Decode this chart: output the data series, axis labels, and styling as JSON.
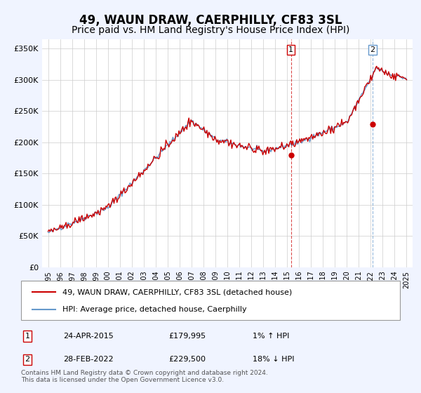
{
  "title": "49, WAUN DRAW, CAERPHILLY, CF83 3SL",
  "subtitle": "Price paid vs. HM Land Registry's House Price Index (HPI)",
  "title_fontsize": 12,
  "subtitle_fontsize": 10,
  "ylabel_ticks": [
    "£0",
    "£50K",
    "£100K",
    "£150K",
    "£200K",
    "£250K",
    "£300K",
    "£350K"
  ],
  "ytick_vals": [
    0,
    50000,
    100000,
    150000,
    200000,
    250000,
    300000,
    350000
  ],
  "ylim": [
    0,
    365000
  ],
  "xlim_start": 1994.5,
  "xlim_end": 2025.5,
  "hpi_color": "#6699cc",
  "property_color": "#cc0000",
  "marker1_date": 2015.32,
  "marker1_price": 179995,
  "marker2_date": 2022.16,
  "marker2_price": 229500,
  "legend_label1": "49, WAUN DRAW, CAERPHILLY, CF83 3SL (detached house)",
  "legend_label2": "HPI: Average price, detached house, Caerphilly",
  "table_row1": [
    "1",
    "24-APR-2015",
    "£179,995",
    "1% ↑ HPI"
  ],
  "table_row2": [
    "2",
    "28-FEB-2022",
    "£229,500",
    "18% ↓ HPI"
  ],
  "footnote": "Contains HM Land Registry data © Crown copyright and database right 2024.\nThis data is licensed under the Open Government Licence v3.0.",
  "background_color": "#f0f4ff",
  "plot_bg_color": "#ffffff",
  "grid_color": "#cccccc"
}
